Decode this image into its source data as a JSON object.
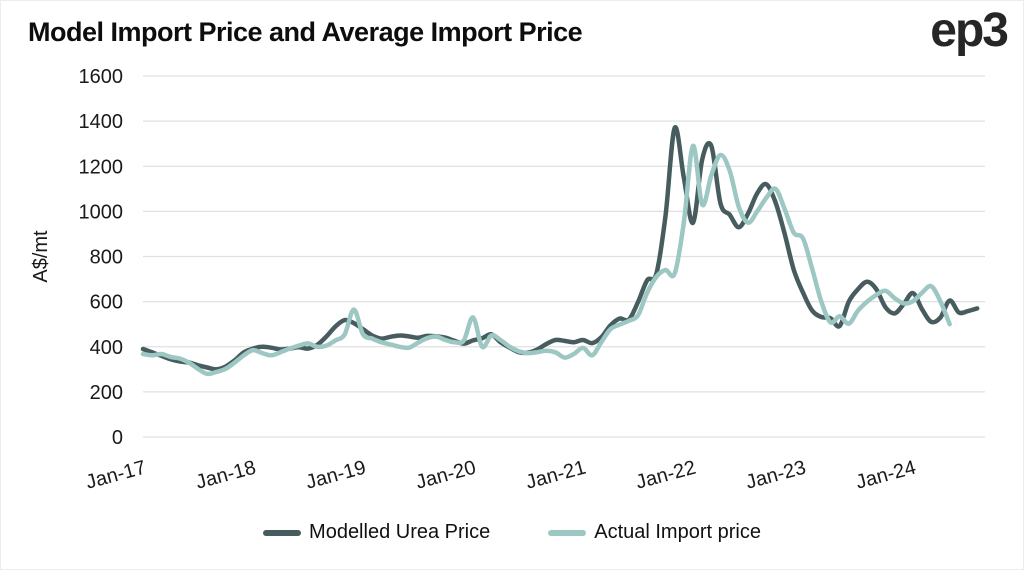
{
  "header": {
    "title": "Model Import Price and Average Import Price",
    "logo_text": "ep3"
  },
  "colors": {
    "modelled_line": "#475c5e",
    "actual_line": "#9cc7c3",
    "gridline": "#e0e0e0",
    "axis_text": "#1a1a1a",
    "title_text": "#0d0d0d"
  },
  "chart_data": {
    "type": "line",
    "title": "Model Import Price and Average Import Price",
    "xlabel": "",
    "ylabel": "A$/mt",
    "ylim": [
      0,
      1600
    ],
    "yticks": [
      0,
      200,
      400,
      600,
      800,
      1000,
      1200,
      1400,
      1600
    ],
    "xticks": [
      "Jan-17",
      "Jan-18",
      "Jan-19",
      "Jan-20",
      "Jan-21",
      "Jan-22",
      "Jan-23",
      "Jan-24"
    ],
    "x_interval": "monthly",
    "x_start": "Jan-17",
    "grid": "horizontal",
    "legend_position": "bottom",
    "series": [
      {
        "name": "Modelled Urea Price",
        "color": "#475c5e",
        "start": "Jan-17",
        "values": [
          390,
          375,
          360,
          345,
          335,
          330,
          318,
          308,
          300,
          312,
          340,
          375,
          392,
          400,
          396,
          388,
          392,
          398,
          392,
          408,
          445,
          490,
          518,
          505,
          478,
          450,
          436,
          444,
          450,
          446,
          440,
          448,
          446,
          440,
          426,
          414,
          428,
          438,
          455,
          420,
          396,
          376,
          374,
          388,
          412,
          430,
          426,
          420,
          430,
          416,
          442,
          495,
          525,
          520,
          598,
          695,
          723,
          980,
          1370,
          1150,
          950,
          1230,
          1290,
          1035,
          985,
          930,
          990,
          1080,
          1120,
          1040,
          900,
          740,
          640,
          560,
          532,
          526,
          492,
          600,
          655,
          688,
          655,
          575,
          548,
          590,
          638,
          565,
          510,
          530,
          605,
          552,
          558,
          570
        ]
      },
      {
        "name": "Actual Import price",
        "color": "#9cc7c3",
        "start": "Jan-17",
        "values": [
          368,
          362,
          368,
          355,
          348,
          330,
          302,
          280,
          288,
          302,
          330,
          362,
          385,
          372,
          362,
          376,
          392,
          405,
          415,
          400,
          405,
          428,
          455,
          565,
          455,
          436,
          420,
          410,
          400,
          396,
          418,
          438,
          445,
          430,
          420,
          428,
          530,
          400,
          450,
          430,
          400,
          380,
          372,
          376,
          382,
          375,
          352,
          368,
          395,
          362,
          420,
          478,
          498,
          515,
          540,
          640,
          710,
          740,
          725,
          950,
          1290,
          1030,
          1160,
          1250,
          1180,
          1020,
          950,
          1000,
          1060,
          1100,
          1010,
          905,
          880,
          745,
          600,
          508,
          535,
          502,
          560,
          600,
          630,
          648,
          615,
          592,
          602,
          640,
          668,
          600,
          500
        ]
      }
    ]
  }
}
